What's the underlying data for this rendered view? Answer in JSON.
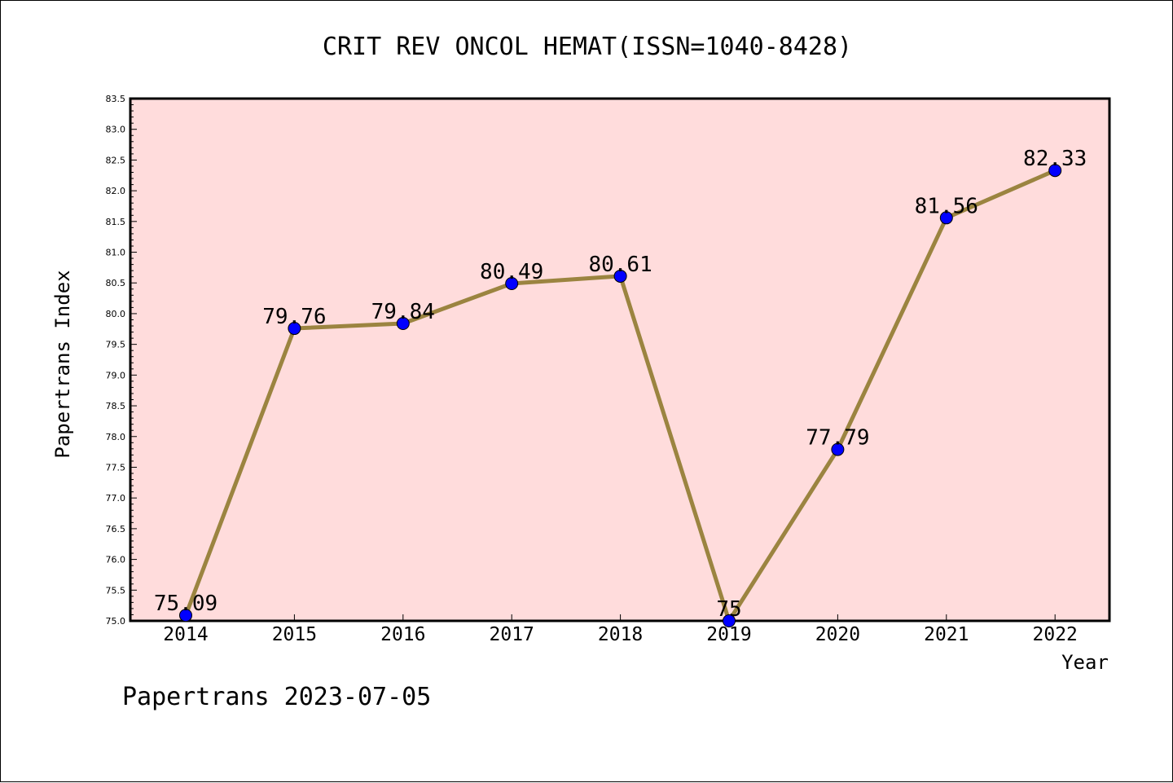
{
  "chart_data": {
    "type": "line",
    "title": "CRIT REV ONCOL HEMAT(ISSN=1040-8428)",
    "xlabel": "Year",
    "ylabel": "Papertrans Index",
    "x": [
      "2014",
      "2015",
      "2016",
      "2017",
      "2018",
      "2019",
      "2020",
      "2021",
      "2022"
    ],
    "series": [
      {
        "values": [
          75.09,
          79.76,
          79.84,
          80.49,
          80.61,
          75,
          77.79,
          81.56,
          82.33
        ]
      }
    ],
    "data_labels": [
      "75.09",
      "79.76",
      "79.84",
      "80.49",
      "80.61",
      "75",
      "77.79",
      "81.56",
      "82.33"
    ],
    "ylim": [
      75.0,
      83.5
    ],
    "yticks": [
      "75.0",
      "75.5",
      "76.0",
      "76.5",
      "77.0",
      "77.5",
      "78.0",
      "78.5",
      "79.0",
      "79.5",
      "80.0",
      "80.5",
      "81.0",
      "81.5",
      "82.0",
      "82.5",
      "83.0",
      "83.5"
    ],
    "grid": false,
    "legend": "none",
    "colors": {
      "plot_background": "#ffdcdc",
      "line": "#9b8440",
      "marker": "#0000ff"
    }
  },
  "footer": "Papertrans 2023-07-05"
}
